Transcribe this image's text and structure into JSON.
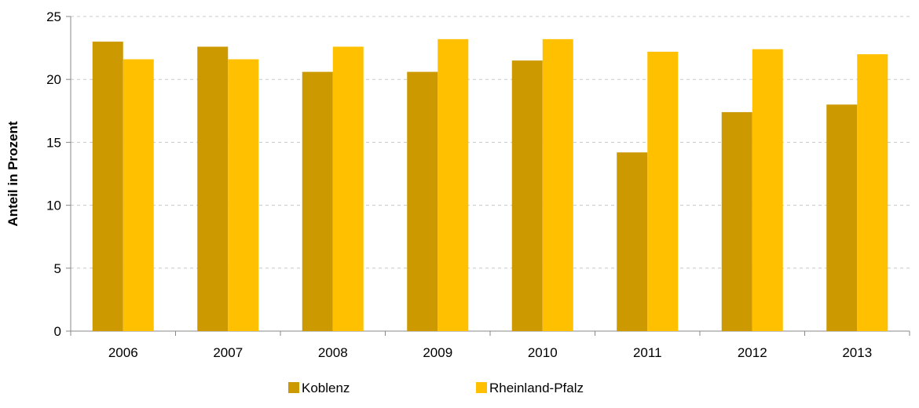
{
  "chart_data": {
    "type": "bar",
    "title": "",
    "xlabel": "",
    "ylabel": "Anteil in Prozent",
    "categories": [
      "2006",
      "2007",
      "2008",
      "2009",
      "2010",
      "2011",
      "2012",
      "2013"
    ],
    "series": [
      {
        "name": "Koblenz",
        "color": "#CC9900",
        "values": [
          23.0,
          22.6,
          20.6,
          20.6,
          21.5,
          14.2,
          17.4,
          18.0
        ]
      },
      {
        "name": "Rheinland-Pfalz",
        "color": "#FFC000",
        "values": [
          21.6,
          21.6,
          22.6,
          23.2,
          23.2,
          22.2,
          22.4,
          22.0
        ]
      }
    ],
    "ylim": [
      0,
      25
    ],
    "yticks": [
      0,
      5,
      10,
      15,
      20,
      25
    ],
    "grid": true,
    "legend_position": "bottom"
  }
}
